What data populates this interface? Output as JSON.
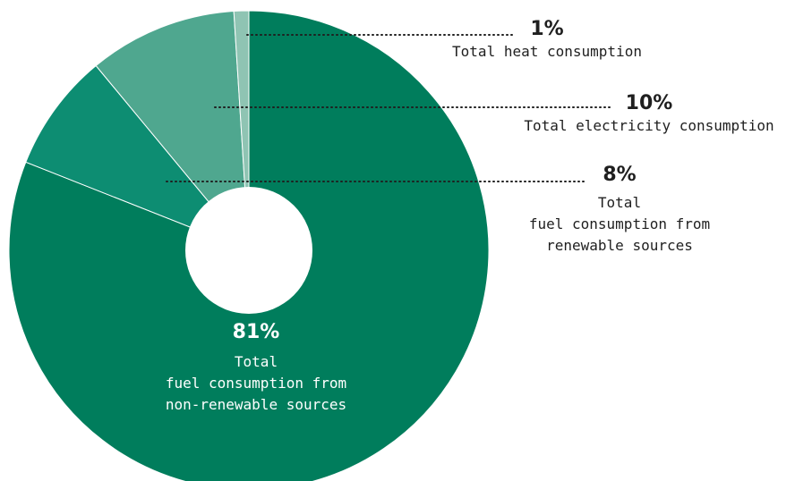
{
  "chart_data": {
    "type": "pie",
    "style": "donut",
    "legend": "none",
    "slices": [
      {
        "value": 81,
        "percent_label": "81%",
        "label_lines": [
          "Total",
          "fuel consumption from",
          "non-renewable sources"
        ],
        "color": "#007d5c"
      },
      {
        "value": 8,
        "percent_label": "8%",
        "label_lines": [
          "Total",
          "fuel consumption from",
          "renewable sources"
        ],
        "color": "#0d8d72"
      },
      {
        "value": 10,
        "percent_label": "10%",
        "label_lines": [
          "Total electricity consumption"
        ],
        "color": "#4fa78f"
      },
      {
        "value": 1,
        "percent_label": "1%",
        "label_lines": [
          "Total heat consumption"
        ],
        "color": "#8fc4b3"
      }
    ]
  }
}
